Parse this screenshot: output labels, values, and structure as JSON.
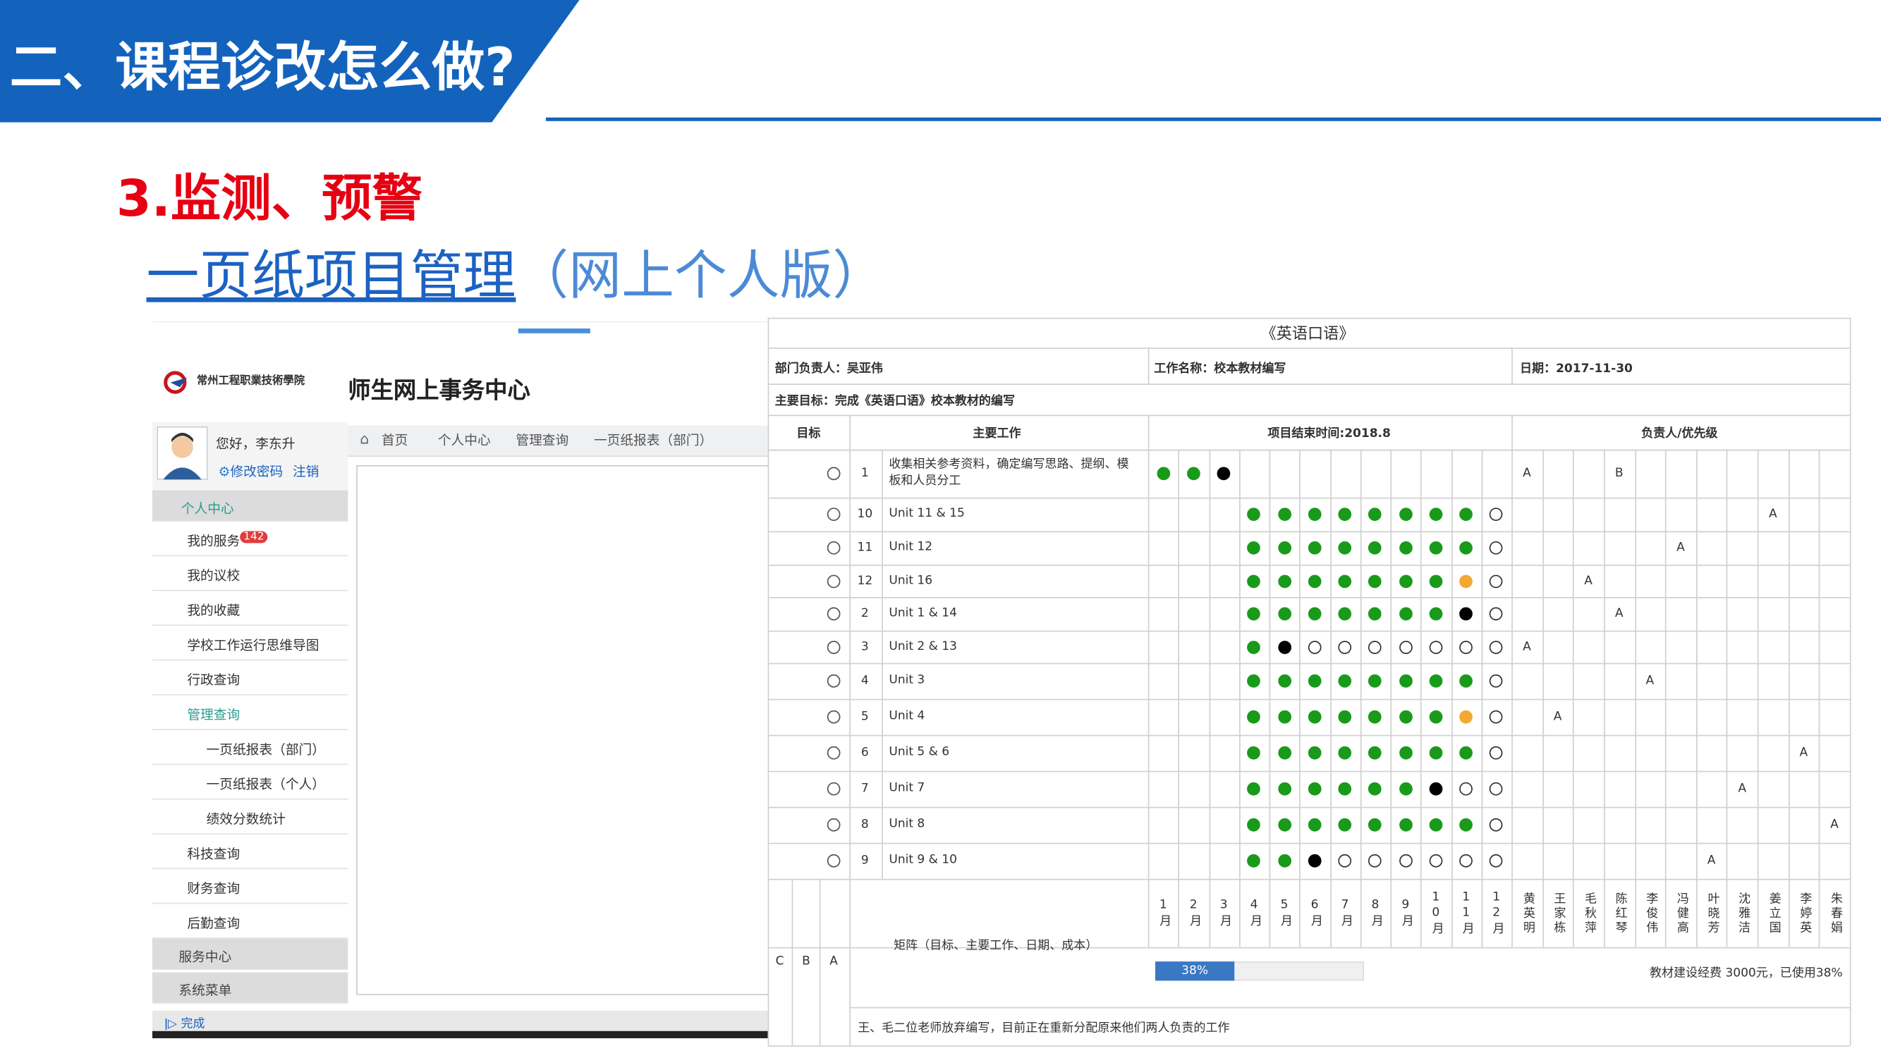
{
  "header": {
    "title": "二、课程诊改怎么做?",
    "section": "3.监测、预警",
    "link": "一页纸项目管理",
    "link_suffix": "（网上个人版）"
  },
  "portal": {
    "school": "常州工程职業技術學院",
    "title": "师生网上事务中心",
    "greeting": "您好，李东升",
    "change_password": "修改密码",
    "logout": "注销",
    "breadcrumbs": [
      "首页",
      "个人中心",
      "管理查询",
      "一页纸报表（部门）"
    ],
    "menu": [
      {
        "label": "个人中心",
        "items": [
          {
            "label": "我的服务",
            "badge": "142"
          },
          {
            "label": "我的议校"
          },
          {
            "label": "我的收藏"
          },
          {
            "label": "学校工作运行思维导图"
          },
          {
            "label": "行政查询"
          },
          {
            "label": "管理查询",
            "children": [
              "一页纸报表（部门）",
              "一页纸报表（个人）",
              "绩效分数统计"
            ]
          },
          {
            "label": "科技查询"
          },
          {
            "label": "财务查询"
          },
          {
            "label": "后勤查询"
          }
        ]
      },
      {
        "label": "服务中心"
      },
      {
        "label": "系统菜单"
      }
    ],
    "status": "完成"
  },
  "sheet": {
    "title": "《英语口语》",
    "manager": "部门负责人：吴亚伟",
    "work": "工作名称：校本教材编写",
    "date": "日期：2017-11-30",
    "goal": "主要目标：完成《英语口语》校本教材的编写",
    "headers": [
      "目标",
      "主要工作",
      "项目结束时间:2018.8",
      "负责人/优先级"
    ],
    "months": [
      "1月",
      "2月",
      "3月",
      "4月",
      "5月",
      "6月",
      "7月",
      "8月",
      "9月",
      "10月",
      "11月",
      "12月"
    ],
    "people": [
      "黄英明",
      "王家栋",
      "毛秋萍",
      "陈红琴",
      "李俊伟",
      "冯健高",
      "叶晓芳",
      "沈雅洁",
      "姜立国",
      "李婷英",
      "朱春娟"
    ],
    "rows": [
      {
        "no": "1",
        "task": "收集相关参考资料，确定编写思路、提纲、模板和人员分工",
        "status": [
          "#1a9a1a",
          "#1a9a1a",
          "#000000",
          null,
          null,
          null,
          null,
          null,
          null,
          null,
          null,
          null
        ],
        "owner": [
          "A",
          null,
          null,
          "B",
          null,
          null,
          null,
          null,
          null,
          null,
          null
        ]
      },
      {
        "no": "10",
        "task": "Unit 11 & 15",
        "status": [
          null,
          null,
          null,
          "#1a9a1a",
          "#1a9a1a",
          "#1a9a1a",
          "#1a9a1a",
          "#1a9a1a",
          "#1a9a1a",
          "#1a9a1a",
          "#1a9a1a",
          "#ffffff"
        ],
        "owner": [
          null,
          null,
          null,
          null,
          null,
          null,
          null,
          null,
          "A",
          null,
          null
        ]
      },
      {
        "no": "11",
        "task": "Unit 12",
        "status": [
          null,
          null,
          null,
          "#1a9a1a",
          "#1a9a1a",
          "#1a9a1a",
          "#1a9a1a",
          "#1a9a1a",
          "#1a9a1a",
          "#1a9a1a",
          "#1a9a1a",
          "#ffffff"
        ],
        "owner": [
          null,
          null,
          null,
          null,
          null,
          "A",
          null,
          null,
          null,
          null,
          null
        ]
      },
      {
        "no": "12",
        "task": "Unit 16",
        "status": [
          null,
          null,
          null,
          "#1a9a1a",
          "#1a9a1a",
          "#1a9a1a",
          "#1a9a1a",
          "#1a9a1a",
          "#1a9a1a",
          "#1a9a1a",
          "#f2a832",
          "#ffffff"
        ],
        "owner": [
          null,
          null,
          "A",
          null,
          null,
          null,
          null,
          null,
          null,
          null,
          null
        ]
      },
      {
        "no": "2",
        "task": "Unit 1 & 14",
        "status": [
          null,
          null,
          null,
          "#1a9a1a",
          "#1a9a1a",
          "#1a9a1a",
          "#1a9a1a",
          "#1a9a1a",
          "#1a9a1a",
          "#1a9a1a",
          "#000000",
          "#ffffff"
        ],
        "owner": [
          null,
          null,
          null,
          "A",
          null,
          null,
          null,
          null,
          null,
          null,
          null
        ]
      },
      {
        "no": "3",
        "task": "Unit 2 & 13",
        "status": [
          null,
          null,
          null,
          "#1a9a1a",
          "#000000",
          "#ffffff",
          "#ffffff",
          "#ffffff",
          "#ffffff",
          "#ffffff",
          "#ffffff",
          "#ffffff"
        ],
        "owner": [
          "A",
          null,
          null,
          null,
          null,
          null,
          null,
          null,
          null,
          null,
          null
        ]
      },
      {
        "no": "4",
        "task": "Unit 3",
        "status": [
          null,
          null,
          null,
          "#1a9a1a",
          "#1a9a1a",
          "#1a9a1a",
          "#1a9a1a",
          "#1a9a1a",
          "#1a9a1a",
          "#1a9a1a",
          "#1a9a1a",
          "#ffffff"
        ],
        "owner": [
          null,
          null,
          null,
          null,
          "A",
          null,
          null,
          null,
          null,
          null,
          null
        ]
      },
      {
        "no": "5",
        "task": "Unit 4",
        "status": [
          null,
          null,
          null,
          "#1a9a1a",
          "#1a9a1a",
          "#1a9a1a",
          "#1a9a1a",
          "#1a9a1a",
          "#1a9a1a",
          "#1a9a1a",
          "#f2a832",
          "#ffffff"
        ],
        "owner": [
          null,
          "A",
          null,
          null,
          null,
          null,
          null,
          null,
          null,
          null,
          null
        ]
      },
      {
        "no": "6",
        "task": "Unit 5 & 6",
        "status": [
          null,
          null,
          null,
          "#1a9a1a",
          "#1a9a1a",
          "#1a9a1a",
          "#1a9a1a",
          "#1a9a1a",
          "#1a9a1a",
          "#1a9a1a",
          "#1a9a1a",
          "#ffffff"
        ],
        "owner": [
          null,
          null,
          null,
          null,
          null,
          null,
          null,
          null,
          null,
          "A",
          null
        ]
      },
      {
        "no": "7",
        "task": "Unit 7",
        "status": [
          null,
          null,
          null,
          "#1a9a1a",
          "#1a9a1a",
          "#1a9a1a",
          "#1a9a1a",
          "#1a9a1a",
          "#1a9a1a",
          "#000000",
          "#ffffff",
          "#ffffff"
        ],
        "owner": [
          null,
          null,
          null,
          null,
          null,
          null,
          null,
          "A",
          null,
          null,
          null
        ]
      },
      {
        "no": "8",
        "task": "Unit 8",
        "status": [
          null,
          null,
          null,
          "#1a9a1a",
          "#1a9a1a",
          "#1a9a1a",
          "#1a9a1a",
          "#1a9a1a",
          "#1a9a1a",
          "#1a9a1a",
          "#1a9a1a",
          "#ffffff"
        ],
        "owner": [
          null,
          null,
          null,
          null,
          null,
          null,
          null,
          null,
          null,
          null,
          "A"
        ]
      },
      {
        "no": "9",
        "task": "Unit 9 & 10",
        "status": [
          null,
          null,
          null,
          "#1a9a1a",
          "#1a9a1a",
          "#000000",
          "#ffffff",
          "#ffffff",
          "#ffffff",
          "#ffffff",
          "#ffffff",
          "#ffffff"
        ],
        "owner": [
          null,
          null,
          null,
          null,
          null,
          null,
          "A",
          null,
          null,
          null,
          null
        ]
      }
    ],
    "priorities": [
      "C",
      "B",
      "A"
    ],
    "matrix": "矩阵（目标、主要工作、日期、成本）",
    "progress": 38,
    "progress_label": "38%",
    "budget": "教材建设经费 3000元，已使用38%",
    "note": "王、毛二位老师放弃编写，目前正在重新分配原来他们两人负责的工作"
  }
}
